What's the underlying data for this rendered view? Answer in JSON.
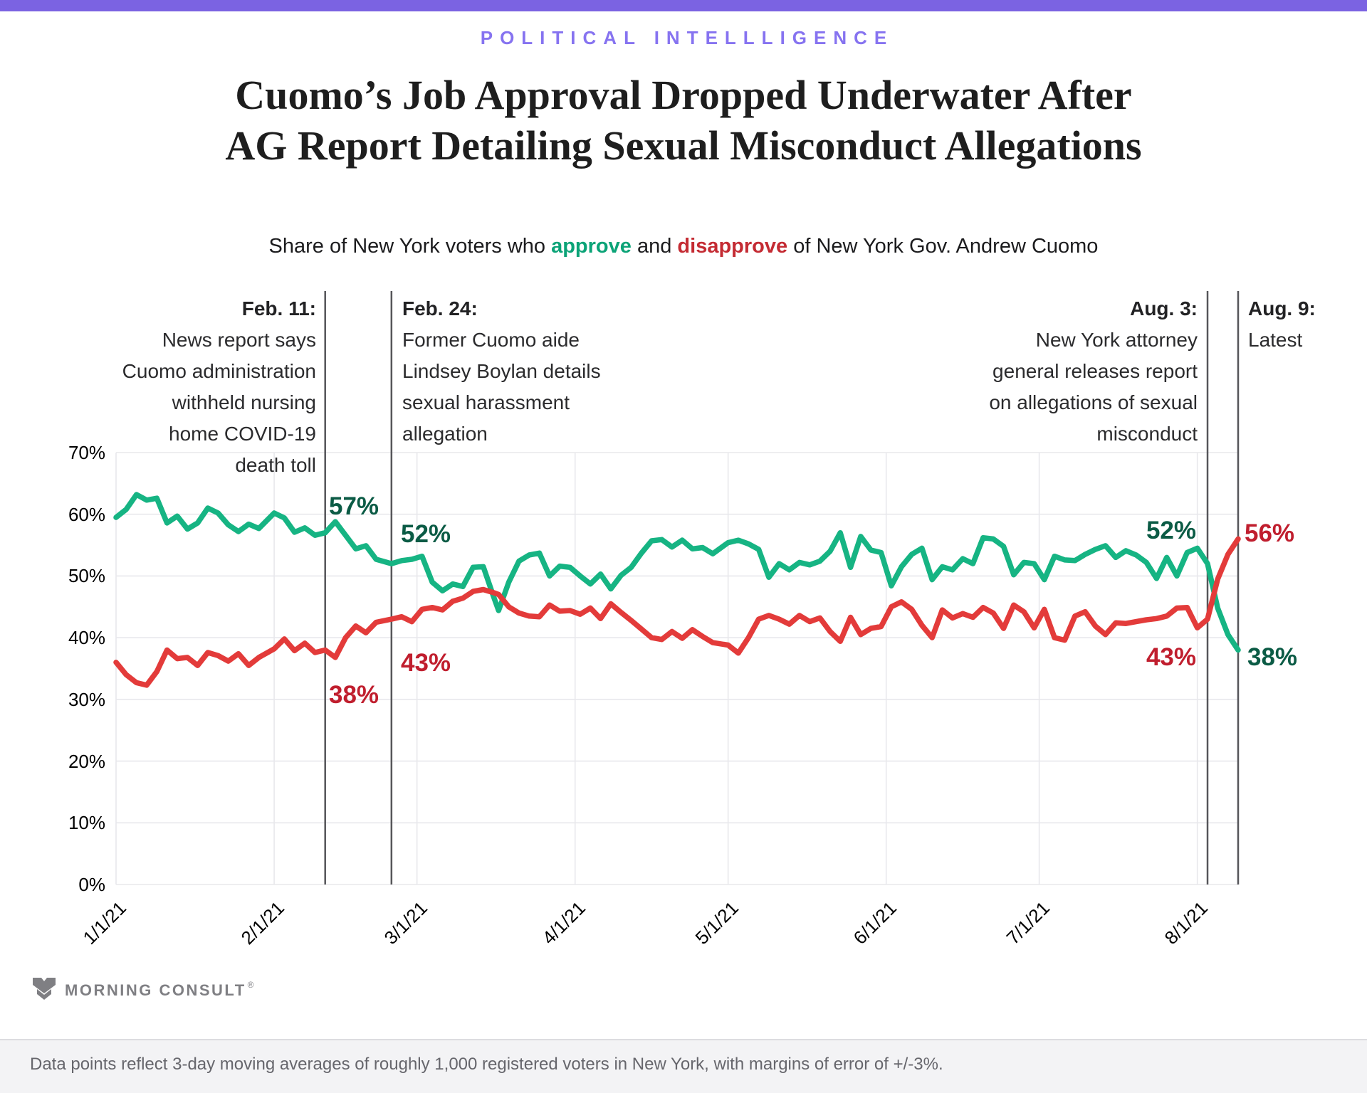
{
  "kicker": "POLITICAL INTELLLIGENCE",
  "title": {
    "lines": [
      "Cuomo’s Job Approval Dropped Underwater After",
      "AG Report Detailing Sexual Misconduct Allegations"
    ]
  },
  "subtitle": {
    "prefix": "Share of New York voters who ",
    "approve_word": "approve",
    "middle": " and ",
    "disapprove_word": "disapprove",
    "suffix": " of New York Gov. Andrew Cuomo"
  },
  "chart_data": {
    "type": "line",
    "title": "Share of New York voters who approve and disapprove of New York Gov. Andrew Cuomo",
    "xlabel": "",
    "ylabel": "",
    "x_unit": "days since 1/1/21",
    "xlim": [
      0,
      220
    ],
    "ylim": [
      0,
      70
    ],
    "grid": "light horizontal lines every 10% and vertical lines at month starts",
    "legend": "none (series identified by colored words in subtitle)",
    "y_ticks": [
      {
        "value": 0,
        "label": "0%"
      },
      {
        "value": 10,
        "label": "10%"
      },
      {
        "value": 20,
        "label": "20%"
      },
      {
        "value": 30,
        "label": "30%"
      },
      {
        "value": 40,
        "label": "40%"
      },
      {
        "value": 50,
        "label": "50%"
      },
      {
        "value": 60,
        "label": "60%"
      },
      {
        "value": 70,
        "label": "70%"
      }
    ],
    "x_ticks": [
      {
        "day": 0,
        "label": "1/1/21"
      },
      {
        "day": 31,
        "label": "2/1/21"
      },
      {
        "day": 59,
        "label": "3/1/21"
      },
      {
        "day": 90,
        "label": "4/1/21"
      },
      {
        "day": 120,
        "label": "5/1/21"
      },
      {
        "day": 151,
        "label": "6/1/21"
      },
      {
        "day": 181,
        "label": "7/1/21"
      },
      {
        "day": 212,
        "label": "8/1/21"
      }
    ],
    "series": [
      {
        "name": "Approve",
        "color_key": "approve_line",
        "points": [
          [
            0,
            59.5
          ],
          [
            2,
            60.8
          ],
          [
            4,
            63.2
          ],
          [
            6,
            62.3
          ],
          [
            8,
            62.6
          ],
          [
            10,
            58.6
          ],
          [
            12,
            59.7
          ],
          [
            14,
            57.6
          ],
          [
            16,
            58.6
          ],
          [
            18,
            61.0
          ],
          [
            20,
            60.2
          ],
          [
            22,
            58.3
          ],
          [
            24,
            57.2
          ],
          [
            26,
            58.4
          ],
          [
            28,
            57.7
          ],
          [
            31,
            60.2
          ],
          [
            33,
            59.4
          ],
          [
            35,
            57.1
          ],
          [
            37,
            57.8
          ],
          [
            39,
            56.6
          ],
          [
            41,
            57.0
          ],
          [
            43,
            58.8
          ],
          [
            45,
            56.6
          ],
          [
            47,
            54.4
          ],
          [
            49,
            54.9
          ],
          [
            51,
            52.7
          ],
          [
            54,
            52.0
          ],
          [
            56,
            52.5
          ],
          [
            58,
            52.7
          ],
          [
            60,
            53.2
          ],
          [
            62,
            49.0
          ],
          [
            64,
            47.6
          ],
          [
            66,
            48.7
          ],
          [
            68,
            48.3
          ],
          [
            70,
            51.4
          ],
          [
            72,
            51.5
          ],
          [
            74,
            46.7
          ],
          [
            75,
            44.4
          ],
          [
            77,
            49.0
          ],
          [
            79,
            52.4
          ],
          [
            81,
            53.4
          ],
          [
            83,
            53.7
          ],
          [
            85,
            50.0
          ],
          [
            87,
            51.6
          ],
          [
            89,
            51.4
          ],
          [
            91,
            50.0
          ],
          [
            93,
            48.7
          ],
          [
            95,
            50.3
          ],
          [
            97,
            47.9
          ],
          [
            99,
            50.1
          ],
          [
            101,
            51.4
          ],
          [
            103,
            53.7
          ],
          [
            105,
            55.7
          ],
          [
            107,
            55.9
          ],
          [
            109,
            54.7
          ],
          [
            111,
            55.8
          ],
          [
            113,
            54.4
          ],
          [
            115,
            54.6
          ],
          [
            117,
            53.6
          ],
          [
            120,
            55.4
          ],
          [
            122,
            55.8
          ],
          [
            124,
            55.2
          ],
          [
            126,
            54.3
          ],
          [
            128,
            49.8
          ],
          [
            130,
            52.0
          ],
          [
            132,
            51.0
          ],
          [
            134,
            52.2
          ],
          [
            136,
            51.8
          ],
          [
            138,
            52.4
          ],
          [
            140,
            54.0
          ],
          [
            142,
            57.0
          ],
          [
            144,
            51.4
          ],
          [
            146,
            56.4
          ],
          [
            148,
            54.2
          ],
          [
            150,
            53.8
          ],
          [
            152,
            48.4
          ],
          [
            154,
            51.5
          ],
          [
            156,
            53.5
          ],
          [
            158,
            54.5
          ],
          [
            160,
            49.4
          ],
          [
            162,
            51.5
          ],
          [
            164,
            51.0
          ],
          [
            166,
            52.8
          ],
          [
            168,
            52.0
          ],
          [
            170,
            56.2
          ],
          [
            172,
            56.0
          ],
          [
            174,
            54.8
          ],
          [
            176,
            50.2
          ],
          [
            178,
            52.2
          ],
          [
            180,
            52.0
          ],
          [
            182,
            49.4
          ],
          [
            184,
            53.2
          ],
          [
            186,
            52.6
          ],
          [
            188,
            52.5
          ],
          [
            190,
            53.5
          ],
          [
            192,
            54.3
          ],
          [
            194,
            54.9
          ],
          [
            196,
            53.0
          ],
          [
            198,
            54.1
          ],
          [
            200,
            53.4
          ],
          [
            202,
            52.2
          ],
          [
            204,
            49.6
          ],
          [
            206,
            53.0
          ],
          [
            208,
            50.0
          ],
          [
            210,
            53.8
          ],
          [
            212,
            54.5
          ],
          [
            214,
            52.0
          ],
          [
            216,
            44.8
          ],
          [
            218,
            40.5
          ],
          [
            220,
            38.0
          ]
        ]
      },
      {
        "name": "Disapprove",
        "color_key": "disapprove_line",
        "points": [
          [
            0,
            36.0
          ],
          [
            2,
            34.0
          ],
          [
            4,
            32.7
          ],
          [
            6,
            32.3
          ],
          [
            8,
            34.5
          ],
          [
            10,
            38.0
          ],
          [
            12,
            36.6
          ],
          [
            14,
            36.8
          ],
          [
            16,
            35.5
          ],
          [
            18,
            37.6
          ],
          [
            20,
            37.1
          ],
          [
            22,
            36.2
          ],
          [
            24,
            37.4
          ],
          [
            26,
            35.5
          ],
          [
            28,
            36.8
          ],
          [
            31,
            38.2
          ],
          [
            33,
            39.8
          ],
          [
            35,
            37.9
          ],
          [
            37,
            39.1
          ],
          [
            39,
            37.6
          ],
          [
            41,
            38.0
          ],
          [
            43,
            36.8
          ],
          [
            45,
            40.0
          ],
          [
            47,
            41.9
          ],
          [
            49,
            40.8
          ],
          [
            51,
            42.5
          ],
          [
            54,
            43.0
          ],
          [
            56,
            43.4
          ],
          [
            58,
            42.6
          ],
          [
            60,
            44.6
          ],
          [
            62,
            44.9
          ],
          [
            64,
            44.5
          ],
          [
            66,
            45.9
          ],
          [
            68,
            46.4
          ],
          [
            70,
            47.5
          ],
          [
            72,
            47.8
          ],
          [
            74,
            47.3
          ],
          [
            75,
            47.0
          ],
          [
            77,
            45.0
          ],
          [
            79,
            44.0
          ],
          [
            81,
            43.5
          ],
          [
            83,
            43.4
          ],
          [
            85,
            45.3
          ],
          [
            87,
            44.3
          ],
          [
            89,
            44.4
          ],
          [
            91,
            43.8
          ],
          [
            93,
            44.8
          ],
          [
            95,
            43.1
          ],
          [
            97,
            45.5
          ],
          [
            99,
            44.1
          ],
          [
            101,
            42.8
          ],
          [
            103,
            41.4
          ],
          [
            105,
            40.0
          ],
          [
            107,
            39.7
          ],
          [
            109,
            41.0
          ],
          [
            111,
            39.9
          ],
          [
            113,
            41.3
          ],
          [
            115,
            40.2
          ],
          [
            117,
            39.2
          ],
          [
            120,
            38.8
          ],
          [
            122,
            37.5
          ],
          [
            124,
            40.0
          ],
          [
            126,
            43.0
          ],
          [
            128,
            43.6
          ],
          [
            130,
            43.0
          ],
          [
            132,
            42.2
          ],
          [
            134,
            43.6
          ],
          [
            136,
            42.6
          ],
          [
            138,
            43.2
          ],
          [
            140,
            41.0
          ],
          [
            142,
            39.4
          ],
          [
            144,
            43.3
          ],
          [
            146,
            40.5
          ],
          [
            148,
            41.5
          ],
          [
            150,
            41.8
          ],
          [
            152,
            45.0
          ],
          [
            154,
            45.8
          ],
          [
            156,
            44.6
          ],
          [
            158,
            42.0
          ],
          [
            160,
            40.0
          ],
          [
            162,
            44.5
          ],
          [
            164,
            43.2
          ],
          [
            166,
            43.9
          ],
          [
            168,
            43.3
          ],
          [
            170,
            44.9
          ],
          [
            172,
            44.0
          ],
          [
            174,
            41.5
          ],
          [
            176,
            45.3
          ],
          [
            178,
            44.2
          ],
          [
            180,
            41.6
          ],
          [
            182,
            44.6
          ],
          [
            184,
            40.0
          ],
          [
            186,
            39.6
          ],
          [
            188,
            43.5
          ],
          [
            190,
            44.2
          ],
          [
            192,
            41.9
          ],
          [
            194,
            40.5
          ],
          [
            196,
            42.4
          ],
          [
            198,
            42.3
          ],
          [
            200,
            42.6
          ],
          [
            202,
            42.9
          ],
          [
            204,
            43.1
          ],
          [
            206,
            43.5
          ],
          [
            208,
            44.8
          ],
          [
            210,
            44.9
          ],
          [
            212,
            41.6
          ],
          [
            214,
            43.0
          ],
          [
            216,
            49.5
          ],
          [
            218,
            53.5
          ],
          [
            220,
            56.0
          ]
        ]
      }
    ],
    "events": [
      {
        "day": 41,
        "heading": "Feb. 11:",
        "align": "right",
        "lines": [
          "News report says",
          "Cuomo administration",
          "withheld nursing",
          "home COVID-19",
          "death toll"
        ]
      },
      {
        "day": 54,
        "heading": "Feb. 24:",
        "align": "left",
        "lines": [
          "Former Cuomo aide",
          "Lindsey Boylan details",
          "sexual harassment",
          "allegation"
        ]
      },
      {
        "day": 214,
        "heading": "Aug. 3:",
        "align": "right",
        "lines": [
          "New York attorney",
          "general releases report",
          "on allegations of sexual",
          "misconduct"
        ]
      },
      {
        "day": 220,
        "heading": "Aug. 9:",
        "align": "left",
        "lines": [
          "Latest"
        ]
      }
    ],
    "point_labels": [
      {
        "id": "feb11_approve",
        "text": "57%",
        "series": "Approve",
        "day": 41,
        "value": 57
      },
      {
        "id": "feb11_disapprove",
        "text": "38%",
        "series": "Disapprove",
        "day": 41,
        "value": 38
      },
      {
        "id": "feb24_approve",
        "text": "52%",
        "series": "Approve",
        "day": 54,
        "value": 52
      },
      {
        "id": "feb24_disapprove",
        "text": "43%",
        "series": "Disapprove",
        "day": 54,
        "value": 43
      },
      {
        "id": "aug3_approve",
        "text": "52%",
        "series": "Approve",
        "day": 214,
        "value": 52
      },
      {
        "id": "aug3_disapprove",
        "text": "43%",
        "series": "Disapprove",
        "day": 214,
        "value": 43
      },
      {
        "id": "aug9_disapprove",
        "text": "56%",
        "series": "Disapprove",
        "day": 220,
        "value": 56
      },
      {
        "id": "aug9_approve",
        "text": "38%",
        "series": "Approve",
        "day": 220,
        "value": 38
      }
    ]
  },
  "logo": {
    "text": "MORNING CONSULT",
    "registered": "®"
  },
  "footnote": "Data points reflect 3-day moving averages of roughly 1,000 registered voters in New York, with margins of error of +/-3%.",
  "colors": {
    "topbar": "#7b63e2",
    "kicker": "#8673f0",
    "approve_line": "#16b483",
    "disapprove_line": "#e33b3a",
    "approve_label": "#0b5b45",
    "disapprove_label": "#c01e2e",
    "approve_sub": "#0ba377",
    "disapprove_sub": "#c42b33",
    "grid": "#e8e8ec",
    "event_line": "#56565a",
    "axis_text": "#3a3a3c",
    "footer_bg": "#f3f3f5",
    "footer_text": "#66666c",
    "logo": "#7f7f83"
  }
}
